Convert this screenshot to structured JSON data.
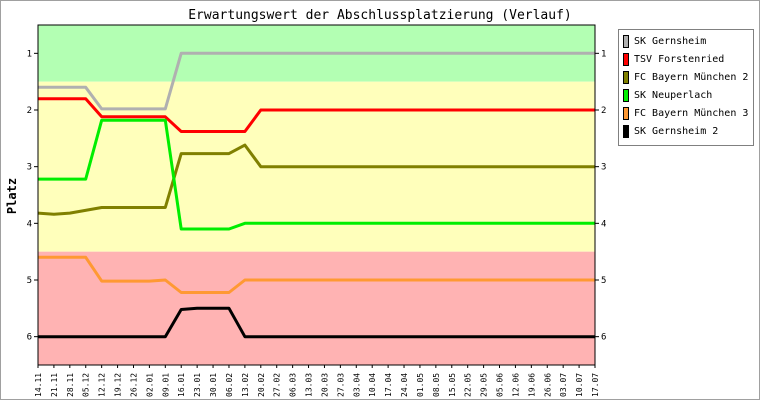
{
  "chart_data": {
    "type": "line",
    "title": "Erwartungswert der Abschlussplatzierung (Verlauf)",
    "ylabel": "Platz",
    "xlabel": "",
    "ylim": [
      6.5,
      0.5
    ],
    "y_ticks": [
      1,
      2,
      3,
      4,
      5,
      6
    ],
    "bands": [
      {
        "from": 0.5,
        "to": 1.5,
        "color": "#b3ffb3"
      },
      {
        "from": 1.5,
        "to": 4.5,
        "color": "#ffffbb"
      },
      {
        "from": 4.5,
        "to": 6.5,
        "color": "#ffb3b3"
      }
    ],
    "categories": [
      "14.11",
      "21.11",
      "28.11",
      "05.12",
      "12.12",
      "19.12",
      "26.12",
      "02.01",
      "09.01",
      "16.01",
      "23.01",
      "30.01",
      "06.02",
      "13.02",
      "20.02",
      "27.02",
      "06.03",
      "13.03",
      "20.03",
      "27.03",
      "03.04",
      "10.04",
      "17.04",
      "24.04",
      "01.05",
      "08.05",
      "15.05",
      "22.05",
      "29.05",
      "05.06",
      "12.06",
      "19.06",
      "26.06",
      "03.07",
      "10.07",
      "17.07"
    ],
    "legend_position": "right",
    "series": [
      {
        "name": "SK Gernsheim",
        "color": "#b0b0b0",
        "points": [
          [
            0,
            1.6
          ],
          [
            3,
            1.6
          ],
          [
            4,
            1.98
          ],
          [
            8,
            1.98
          ],
          [
            9,
            1.0
          ],
          [
            35,
            1.0
          ]
        ]
      },
      {
        "name": "TSV Forstenried",
        "color": "#ff0000",
        "points": [
          [
            0,
            1.8
          ],
          [
            3,
            1.8
          ],
          [
            4,
            2.12
          ],
          [
            8,
            2.12
          ],
          [
            9,
            2.38
          ],
          [
            13,
            2.38
          ],
          [
            14,
            2.0
          ],
          [
            35,
            2.0
          ]
        ]
      },
      {
        "name": "FC Bayern München 2",
        "color": "#808000",
        "points": [
          [
            0,
            3.82
          ],
          [
            1,
            3.84
          ],
          [
            2,
            3.82
          ],
          [
            4,
            3.72
          ],
          [
            8,
            3.72
          ],
          [
            9,
            2.77
          ],
          [
            12,
            2.77
          ],
          [
            13,
            2.62
          ],
          [
            14,
            3.0
          ],
          [
            35,
            3.0
          ]
        ]
      },
      {
        "name": "SK Neuperlach",
        "color": "#00ee00",
        "points": [
          [
            0,
            3.22
          ],
          [
            3,
            3.22
          ],
          [
            4,
            2.18
          ],
          [
            8,
            2.18
          ],
          [
            9,
            4.1
          ],
          [
            12,
            4.1
          ],
          [
            13,
            4.0
          ],
          [
            35,
            4.0
          ]
        ]
      },
      {
        "name": "FC Bayern München 3",
        "color": "#ff9933",
        "points": [
          [
            0,
            4.6
          ],
          [
            3,
            4.6
          ],
          [
            4,
            5.02
          ],
          [
            7,
            5.02
          ],
          [
            8,
            5.0
          ],
          [
            9,
            5.22
          ],
          [
            12,
            5.22
          ],
          [
            13,
            5.0
          ],
          [
            35,
            5.0
          ]
        ]
      },
      {
        "name": "SK Gernsheim 2",
        "color": "#000000",
        "points": [
          [
            0,
            6.0
          ],
          [
            8,
            6.0
          ],
          [
            9,
            5.52
          ],
          [
            10,
            5.5
          ],
          [
            12,
            5.5
          ],
          [
            13,
            6.0
          ],
          [
            35,
            6.0
          ]
        ]
      }
    ]
  }
}
